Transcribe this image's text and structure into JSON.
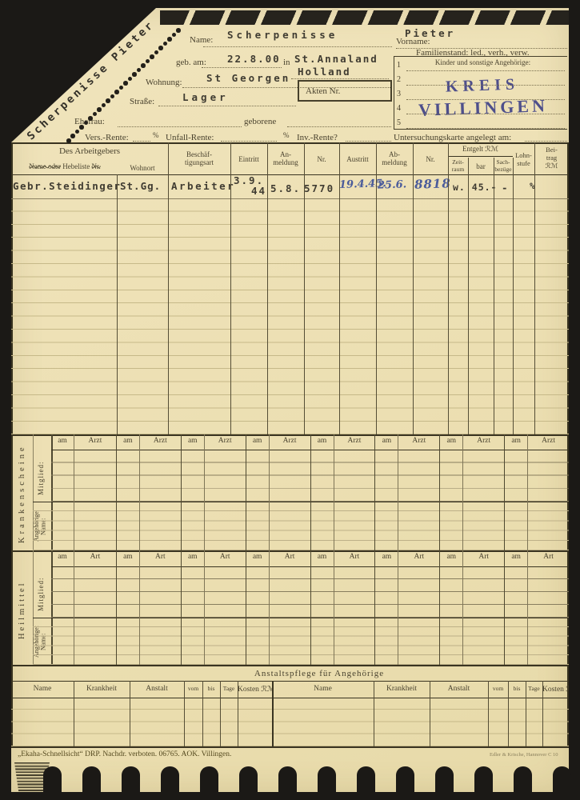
{
  "card": {
    "diagonal_name": "Scherpenisse Pieter",
    "stamp": {
      "line1": "KREIS",
      "line2": "VILLINGEN",
      "color": "#3d4087"
    },
    "fields": {
      "name_label": "Name:",
      "name_value": "Scherpenisse",
      "vorname_label": "Vorname:",
      "vorname_value": "Pieter",
      "geb_label": "geb. am:",
      "geb_value": "22.8.00",
      "in_label": "in",
      "birthplace_line1": "St.Annaland",
      "birthplace_line2": "Holland",
      "wohnung_label": "Wohnung:",
      "wohnung_value": "St Georgen",
      "strasse_label": "Straße:",
      "strasse_value": "Lager",
      "akten_label": "Akten Nr.",
      "ehefrau_label": "Ehefrau:",
      "geborene_label": "geborene",
      "vers_label": "Vers.-Rente:",
      "vers_pct": "%",
      "unfall_label": "Unfall-Rente:",
      "unfall_pct": "%",
      "inv_label": "Inv.-Rente?",
      "familienstand_label": "Familienstand: led., verh., verw.",
      "kinder_box_title": "Kinder und sonstige Angehörige:",
      "kinder_row_numbers": [
        "1",
        "2",
        "3",
        "4",
        "5"
      ],
      "untersuchung_label": "Untersuchungskarte angelegt am:"
    },
    "employment_table": {
      "employer_group_label": "Des Arbeitgebers",
      "headers": {
        "name_struck_a": "Name oder",
        "name_mid": "Hebeliste",
        "name_struck_b": "Nr.",
        "wohnort": "Wohnort",
        "art": "Beschäf-\ntigungsart",
        "eintritt": "Eintritt",
        "anmeldung": "An-\nmeldung",
        "nr1": "Nr.",
        "austritt": "Austritt",
        "abmeldung": "Ab-\nmeldung",
        "nr2": "Nr.",
        "entgelt_group": "Entgelt ℛℳ",
        "zeitraum": "Zeit-\nraum",
        "bar": "bar",
        "sach": "Sach-\nbezüge",
        "lohnstufe": "Lohn-\nstufe",
        "beitrag": "Bei-\ntrag\nℛℳ"
      },
      "row1": {
        "name": "Gebr.Steidinger",
        "wohnort": "St.Gg.",
        "art": "Arbeiter",
        "eintritt_top": "3.9.",
        "eintritt_bottom": "44",
        "anmeldung": "5.8.",
        "nr1": "5770",
        "austritt": "19.4.45.",
        "abmeldung": "25.6.",
        "nr2": "8818",
        "entgelt": "w. 45.-",
        "sach": "-",
        "lohnstufe": "%"
      }
    },
    "krankenscheine": {
      "section_label": "Krankenscheine",
      "mitglied_label": "Mitglied:",
      "angehoerige_label": "Angehörige\nName:",
      "pair_labels": [
        "am",
        "Arzt"
      ],
      "pair_count": 8
    },
    "heilmittel": {
      "section_label": "Heilmittel",
      "mitglied_label": "Mitglied:",
      "angehoerige_label": "Angehörige:\nName:",
      "pair_labels": [
        "am",
        "Art"
      ],
      "pair_count": 8
    },
    "anstaltspflege": {
      "title": "Anstaltspflege für Angehörige",
      "columns": [
        "Name",
        "Krankheit",
        "Anstalt",
        "vom",
        "bis",
        "Tage",
        "Kosten ℛℳ"
      ]
    },
    "footer": {
      "left": "„Ekaha-Schnellsicht“ DRP.   Nachdr. verboten.   06765.   AOK. Villingen.",
      "right": "Edler & Krische, Hannover C 10"
    }
  }
}
